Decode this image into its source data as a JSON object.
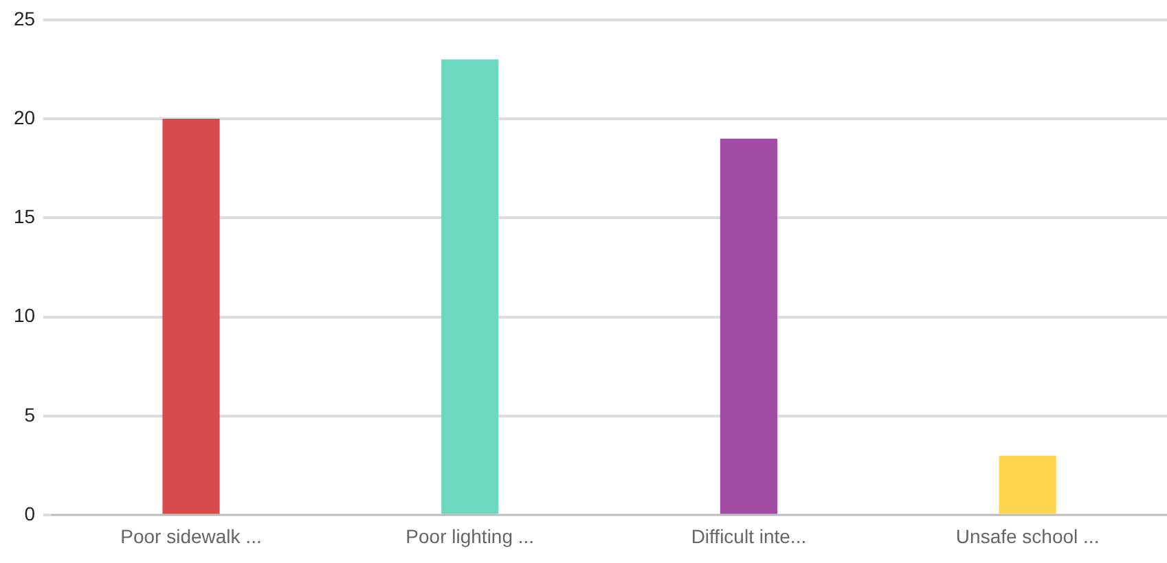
{
  "chart_data": {
    "type": "bar",
    "categories": [
      "Poor sidewalk ...",
      "Poor lighting ...",
      "Difficult inte...",
      "Unsafe school ..."
    ],
    "values": [
      20,
      23,
      19,
      3
    ],
    "colors": [
      "#d94a4d",
      "#6ad9c0",
      "#a24ca5",
      "#ffd54f"
    ],
    "ylim": [
      0,
      25
    ],
    "yticks": [
      0,
      5,
      10,
      15,
      20,
      25
    ],
    "grid": "y",
    "legend": false
  }
}
